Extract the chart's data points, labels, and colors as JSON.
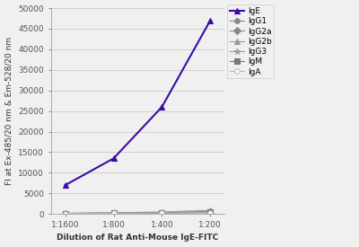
{
  "x_labels": [
    "1:1600",
    "1:800",
    "1:400",
    "1:200"
  ],
  "x_values": [
    1,
    2,
    3,
    4
  ],
  "series": {
    "IgE": [
      7000,
      13500,
      26000,
      47000
    ],
    "IgG1": [
      150,
      200,
      250,
      400
    ],
    "IgG2a": [
      150,
      200,
      250,
      350
    ],
    "IgG2b": [
      150,
      250,
      350,
      600
    ],
    "IgG3": [
      150,
      300,
      500,
      900
    ],
    "IgM": [
      150,
      200,
      300,
      500
    ],
    "IgA": [
      150,
      200,
      250,
      300
    ]
  },
  "colors": {
    "IgE": "#3a0ca3",
    "IgG1": "#888888",
    "IgG2a": "#888888",
    "IgG2b": "#999999",
    "IgG3": "#999999",
    "IgM": "#777777",
    "IgA": "#bbbbbb"
  },
  "markers": {
    "IgE": "^",
    "IgG1": "o",
    "IgG2a": "D",
    "IgG2b": "^",
    "IgG3": "*",
    "IgM": "s",
    "IgA": "o"
  },
  "marker_sizes": {
    "IgE": 5,
    "IgG1": 4,
    "IgG2a": 4,
    "IgG2b": 4,
    "IgG3": 5,
    "IgM": 4,
    "IgA": 4
  },
  "marker_facecolors": {
    "IgE": "#3a0ca3",
    "IgG1": "#888888",
    "IgG2a": "#888888",
    "IgG2b": "#999999",
    "IgG3": "none",
    "IgM": "#777777",
    "IgA": "white"
  },
  "linewidths": {
    "IgE": 1.5,
    "IgG1": 0.8,
    "IgG2a": 0.8,
    "IgG2b": 0.8,
    "IgG3": 0.8,
    "IgM": 0.8,
    "IgA": 0.8
  },
  "ylabel": "FI at Ex-485/20 nm & Em-528/20 nm",
  "xlabel": "Dilution of Rat Anti-Mouse IgE-FITC",
  "ylim": [
    0,
    50000
  ],
  "yticks": [
    0,
    5000,
    10000,
    15000,
    20000,
    25000,
    30000,
    35000,
    40000,
    45000,
    50000
  ],
  "ytick_labels": [
    "0",
    "5000",
    "10000",
    "15000",
    "20000",
    "25000",
    "30000",
    "35000",
    "40000",
    "45000",
    "50000"
  ],
  "background_color": "#f0f0f0",
  "plot_bg_color": "#f0f0f0",
  "grid_color": "#d0d0d0",
  "label_fontsize": 6.5,
  "tick_fontsize": 6.5,
  "legend_fontsize": 6.5
}
